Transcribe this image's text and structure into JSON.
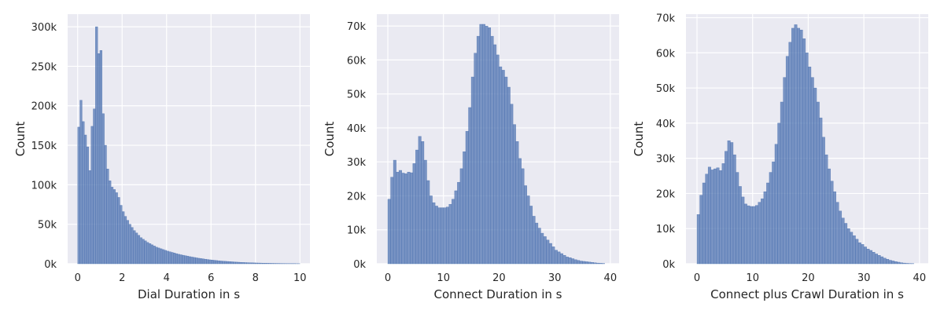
{
  "chart_data": [
    {
      "type": "histogram",
      "xlabel": "Dial Duration in s",
      "ylabel": "Count",
      "xlim": [
        -0.45,
        10.45
      ],
      "ylim": [
        0,
        316000
      ],
      "xticks": [
        0,
        2,
        4,
        6,
        8,
        10
      ],
      "xtick_labels": [
        "0",
        "2",
        "4",
        "6",
        "8",
        "10"
      ],
      "yticks": [
        0,
        50000,
        100000,
        150000,
        200000,
        250000,
        300000
      ],
      "ytick_labels": [
        "0k",
        "50k",
        "100k",
        "150k",
        "200k",
        "250k",
        "300k"
      ],
      "bin_start": 0.0,
      "bin_width": 0.1,
      "values": [
        173000,
        207000,
        180000,
        163000,
        148000,
        118000,
        174000,
        196000,
        300000,
        266000,
        270000,
        190000,
        150000,
        120000,
        105000,
        97000,
        94000,
        90000,
        84000,
        74000,
        66000,
        60000,
        55000,
        50000,
        46000,
        42000,
        39000,
        36000,
        33000,
        31000,
        29000,
        27000,
        25500,
        24000,
        22500,
        21000,
        20000,
        19000,
        18000,
        17000,
        16000,
        15200,
        14400,
        13600,
        12800,
        12000,
        11400,
        10800,
        10200,
        9600,
        9000,
        8500,
        8000,
        7500,
        7000,
        6600,
        6200,
        5800,
        5400,
        5000,
        4700,
        4400,
        4100,
        3800,
        3500,
        3300,
        3100,
        2900,
        2700,
        2500,
        2300,
        2100,
        1950,
        1800,
        1650,
        1500,
        1400,
        1300,
        1200,
        1100,
        1000,
        930,
        860,
        790,
        720,
        660,
        600,
        550,
        500,
        450,
        410,
        370,
        340,
        310,
        280,
        250,
        230,
        210,
        190,
        170
      ],
      "grid": true,
      "bar_color": "#4c72b0"
    },
    {
      "type": "histogram",
      "xlabel": "Connect Duration in s",
      "ylabel": "Count",
      "xlim": [
        -1.98,
        41.58
      ],
      "ylim": [
        0,
        73500
      ],
      "xticks": [
        0,
        10,
        20,
        30,
        40
      ],
      "xtick_labels": [
        "0",
        "10",
        "20",
        "30",
        "40"
      ],
      "yticks": [
        0,
        10000,
        20000,
        30000,
        40000,
        50000,
        60000,
        70000
      ],
      "ytick_labels": [
        "0k",
        "10k",
        "20k",
        "30k",
        "40k",
        "50k",
        "60k",
        "70k"
      ],
      "bin_start": 0.0,
      "bin_width": 0.5,
      "values": [
        19000,
        25500,
        30500,
        27000,
        27500,
        26700,
        26500,
        27000,
        26800,
        29500,
        33500,
        37500,
        36000,
        30500,
        24500,
        20000,
        18000,
        17000,
        16500,
        16500,
        16500,
        16700,
        17500,
        19000,
        21500,
        24000,
        28000,
        33000,
        39000,
        46000,
        55000,
        62000,
        67000,
        70500,
        70500,
        70000,
        69500,
        67000,
        64500,
        61500,
        58000,
        57000,
        55000,
        52000,
        47000,
        41000,
        36000,
        31000,
        28000,
        23000,
        20000,
        17000,
        14000,
        12000,
        10500,
        9000,
        8000,
        7000,
        6000,
        5000,
        4000,
        3500,
        3000,
        2500,
        2000,
        1800,
        1500,
        1200,
        1000,
        800,
        700,
        600,
        500,
        400,
        300,
        200,
        150,
        100
      ],
      "grid": true,
      "bar_color": "#4c72b0"
    },
    {
      "type": "histogram",
      "xlabel": "Connect plus Crawl Duration in s",
      "ylabel": "Count",
      "xlim": [
        -1.98,
        41.58
      ],
      "ylim": [
        0,
        71000
      ],
      "xticks": [
        0,
        10,
        20,
        30,
        40
      ],
      "xtick_labels": [
        "0",
        "10",
        "20",
        "30",
        "40"
      ],
      "yticks": [
        0,
        10000,
        20000,
        30000,
        40000,
        50000,
        60000,
        70000
      ],
      "ytick_labels": [
        "0k",
        "10k",
        "20k",
        "30k",
        "40k",
        "50k",
        "60k",
        "70k"
      ],
      "bin_start": 0.0,
      "bin_width": 0.5,
      "values": [
        14000,
        19500,
        23000,
        25500,
        27500,
        26700,
        27000,
        27300,
        26500,
        28500,
        32000,
        35000,
        34500,
        31000,
        26000,
        22000,
        19000,
        17000,
        16500,
        16300,
        16300,
        16600,
        17500,
        18500,
        20500,
        23000,
        26000,
        29000,
        34000,
        40000,
        46000,
        53000,
        59000,
        63000,
        67000,
        68000,
        67000,
        66500,
        64000,
        60000,
        56000,
        53000,
        50000,
        46000,
        41500,
        36000,
        31000,
        27000,
        23500,
        20500,
        17500,
        15000,
        13000,
        11500,
        10000,
        9000,
        8000,
        7000,
        6000,
        5500,
        4800,
        4200,
        3800,
        3300,
        2800,
        2400,
        2000,
        1600,
        1300,
        1000,
        800,
        600,
        450,
        300,
        200,
        120,
        80,
        50
      ],
      "grid": true,
      "bar_color": "#4c72b0"
    }
  ]
}
